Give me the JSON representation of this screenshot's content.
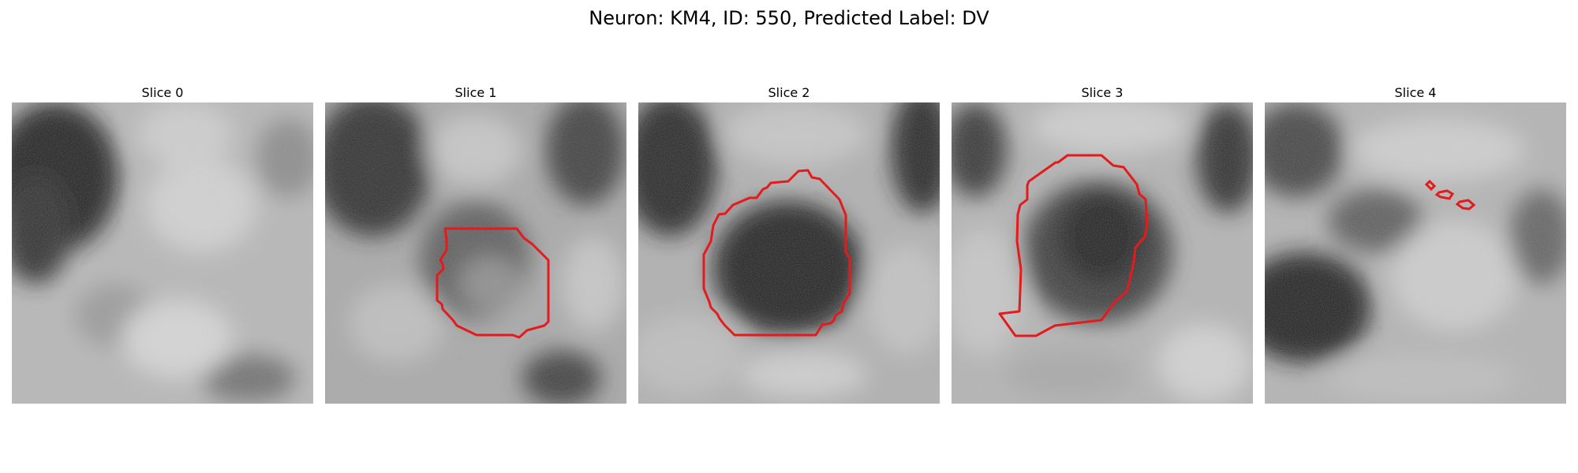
{
  "figure": {
    "suptitle": "Neuron: KM4, ID: 550, Predicted Label: DV",
    "contour_color": "#e41a1c"
  },
  "panels": [
    {
      "title": "Slice 0"
    },
    {
      "title": "Slice 1"
    },
    {
      "title": "Slice 2"
    },
    {
      "title": "Slice 3"
    },
    {
      "title": "Slice 4"
    }
  ]
}
